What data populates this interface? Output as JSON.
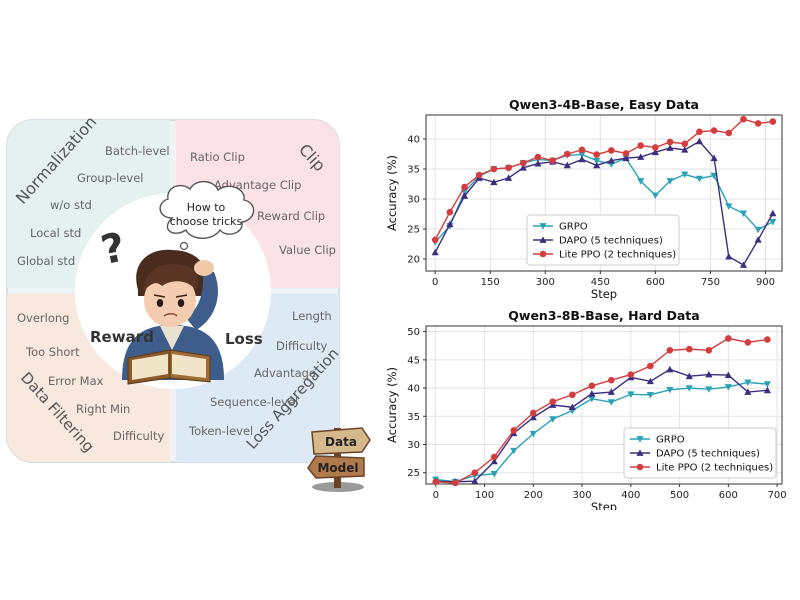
{
  "diagram": {
    "colors": {
      "normalization": "#e6f2f0",
      "clip": "#fbe3e6",
      "filtering": "#f8e9df",
      "aggregation": "#e3edf7"
    },
    "quadrants": {
      "normalization": {
        "title": "Normalization",
        "items": [
          "Batch-level",
          "Group-level",
          "w/o std",
          "Local std",
          "Global std"
        ]
      },
      "clip": {
        "title": "Clip",
        "items": [
          "Ratio Clip",
          "Advantage Clip",
          "Reward Clip",
          "Value Clip"
        ]
      },
      "filtering": {
        "title": "Data Filtering",
        "items": [
          "Overlong",
          "Too Short",
          "Error Max",
          "Right Min",
          "Difficulty"
        ]
      },
      "aggregation": {
        "title": "Loss Aggregation",
        "items": [
          "Length",
          "Difficulty",
          "Advantage",
          "Sequence-level",
          "Token-level"
        ]
      }
    },
    "center": {
      "thought_line1": "How to",
      "thought_line2": "choose tricks",
      "reward": "Reward",
      "loss": "Loss",
      "question": "?"
    },
    "signpost": {
      "top": "Data",
      "bottom": "Model"
    }
  },
  "chart_data": [
    {
      "type": "line",
      "title": "Qwen3-4B-Base, Easy Data",
      "xlabel": "Step",
      "ylabel": "Accuracy (%)",
      "xlim": [
        -25,
        945
      ],
      "ylim": [
        18,
        44
      ],
      "xticks": [
        0,
        150,
        300,
        450,
        600,
        750,
        900
      ],
      "yticks": [
        20,
        25,
        30,
        35,
        40
      ],
      "grid": true,
      "legend": "lower-center",
      "series": [
        {
          "name": "GRPO",
          "color": "#2aa3b7",
          "marker": "triangle-down",
          "x": [
            0,
            40,
            80,
            120,
            160,
            200,
            240,
            280,
            320,
            360,
            400,
            440,
            480,
            520,
            560,
            600,
            640,
            680,
            720,
            760,
            800,
            840,
            880,
            920
          ],
          "y": [
            22.8,
            25.5,
            31.2,
            33.8,
            35,
            35.2,
            36,
            36.6,
            36.4,
            37.3,
            37.4,
            36.4,
            35.8,
            36.8,
            33,
            30.6,
            33,
            34.1,
            33.4,
            33.9,
            28.8,
            27.6,
            24.9,
            26.2
          ]
        },
        {
          "name": "DAPO (5 techniques)",
          "color": "#3b2e7e",
          "marker": "triangle-up",
          "x": [
            0,
            40,
            80,
            120,
            160,
            200,
            240,
            280,
            320,
            360,
            400,
            440,
            480,
            520,
            560,
            600,
            640,
            680,
            720,
            760,
            800,
            840,
            880,
            920
          ],
          "y": [
            21.1,
            25.8,
            30.5,
            33.5,
            32.8,
            33.5,
            35.2,
            35.9,
            36.2,
            35.6,
            36.6,
            35.6,
            36.4,
            36.8,
            37,
            37.8,
            38.5,
            38.2,
            39.6,
            36.8,
            20.4,
            19,
            23.2,
            27.6
          ]
        },
        {
          "name": "Lite PPO (2 techniques)",
          "color": "#d43d3d",
          "marker": "circle",
          "x": [
            0,
            40,
            80,
            120,
            160,
            200,
            240,
            280,
            320,
            360,
            400,
            440,
            480,
            520,
            560,
            600,
            640,
            680,
            720,
            760,
            800,
            840,
            880,
            920
          ],
          "y": [
            23.2,
            27.8,
            32,
            34,
            35,
            35.2,
            36,
            37,
            36.4,
            37.5,
            38.2,
            37.4,
            38.1,
            37.6,
            38.9,
            38.6,
            39.5,
            39.2,
            41.2,
            41.4,
            41,
            43.3,
            42.6,
            42.9
          ]
        }
      ]
    },
    {
      "type": "line",
      "title": "Qwen3-8B-Base, Hard Data",
      "xlabel": "Step",
      "ylabel": "Accuracy (%)",
      "xlim": [
        -20,
        710
      ],
      "ylim": [
        23,
        51
      ],
      "xticks": [
        0,
        100,
        200,
        300,
        400,
        500,
        600,
        700
      ],
      "yticks": [
        25,
        30,
        35,
        40,
        45,
        50
      ],
      "grid": true,
      "legend": "lower-right",
      "series": [
        {
          "name": "GRPO",
          "color": "#2aa3b7",
          "marker": "triangle-down",
          "x": [
            0,
            40,
            80,
            120,
            160,
            200,
            240,
            280,
            320,
            360,
            400,
            440,
            480,
            520,
            560,
            600,
            640,
            680
          ],
          "y": [
            23.8,
            23.4,
            24.5,
            24.8,
            28.9,
            31.9,
            34.5,
            36,
            38.1,
            37.5,
            38.9,
            38.8,
            39.7,
            40,
            39.8,
            40.2,
            41,
            40.7
          ]
        },
        {
          "name": "DAPO (5 techniques)",
          "color": "#3b2e7e",
          "marker": "triangle-up",
          "x": [
            0,
            40,
            80,
            120,
            160,
            200,
            240,
            280,
            320,
            360,
            400,
            440,
            480,
            520,
            560,
            600,
            640,
            680
          ],
          "y": [
            23.5,
            23.4,
            23.5,
            27,
            32,
            34.8,
            37,
            36.6,
            39,
            39.3,
            41.9,
            41.2,
            43.3,
            42.1,
            42.4,
            42.3,
            39.3,
            39.6
          ]
        },
        {
          "name": "Lite PPO (2 techniques)",
          "color": "#d43d3d",
          "marker": "circle",
          "x": [
            0,
            40,
            80,
            120,
            160,
            200,
            240,
            280,
            320,
            360,
            400,
            440,
            480,
            520,
            560,
            600,
            640,
            680
          ],
          "y": [
            23.4,
            23.2,
            25,
            27.8,
            32.5,
            35.6,
            37.6,
            38.8,
            40.4,
            41.4,
            42.4,
            43.9,
            46.7,
            46.9,
            46.7,
            48.8,
            48.1,
            48.6
          ]
        }
      ]
    }
  ]
}
